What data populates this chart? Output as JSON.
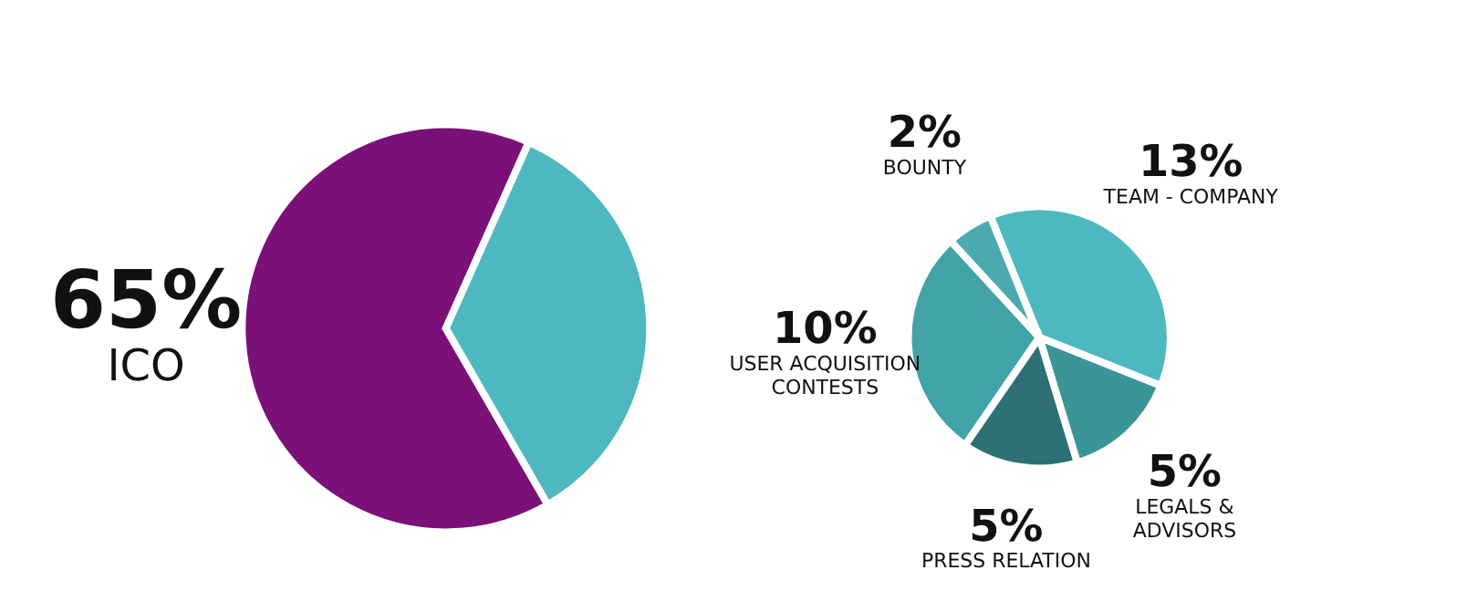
{
  "chart_data": [
    {
      "type": "pie",
      "categories": [
        "ICO",
        null
      ],
      "values": [
        65,
        35
      ],
      "colors": [
        "#7b1078",
        "#4db8bf"
      ],
      "value_labels": [
        "65%",
        null
      ],
      "legend": false
    },
    {
      "type": "pie",
      "categories": [
        "TEAM - COMPANY",
        "LEGALS &\nADVISORS",
        "PRESS RELATION",
        "USER ACQUISITION\nCONTESTS",
        "BOUNTY"
      ],
      "values": [
        13,
        5,
        5,
        10,
        2
      ],
      "colors": [
        "#4db8c0",
        "#3a9498",
        "#2e7073",
        "#41a3a8",
        "#4aaab0"
      ],
      "value_labels": [
        "13%",
        "5%",
        "5%",
        "10%",
        "2%"
      ],
      "legend": false
    }
  ]
}
